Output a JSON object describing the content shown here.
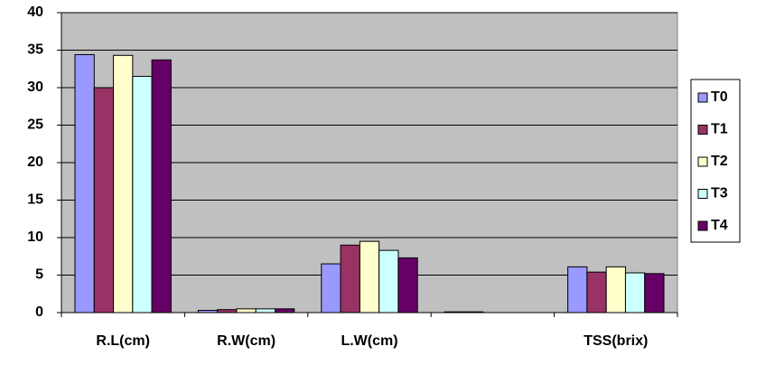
{
  "chart_data": {
    "type": "bar",
    "categories": [
      "R.L(cm)",
      "R.W(cm)",
      "L.W(cm)",
      null,
      "TSS(brix)"
    ],
    "series": [
      {
        "name": "T0",
        "color": "#9999ff",
        "values": [
          34.4,
          0.3,
          6.5,
          0.1,
          6.1
        ]
      },
      {
        "name": "T1",
        "color": "#993366",
        "values": [
          30,
          0.4,
          9,
          0.1,
          5.4
        ]
      },
      {
        "name": "T2",
        "color": "#ffffcc",
        "values": [
          34.3,
          0.5,
          9.5,
          0,
          6.1
        ]
      },
      {
        "name": "T3",
        "color": "#ccffff",
        "values": [
          31.5,
          0.5,
          8.3,
          0,
          5.3
        ]
      },
      {
        "name": "T4",
        "color": "#660066",
        "values": [
          33.7,
          0.5,
          7.3,
          0,
          5.2
        ]
      }
    ],
    "ylim": [
      0,
      40
    ],
    "yticks": [
      0,
      5,
      10,
      15,
      20,
      25,
      30,
      35,
      40
    ],
    "grid": true,
    "legend": "right",
    "plot_background": "#c0c0c0"
  }
}
